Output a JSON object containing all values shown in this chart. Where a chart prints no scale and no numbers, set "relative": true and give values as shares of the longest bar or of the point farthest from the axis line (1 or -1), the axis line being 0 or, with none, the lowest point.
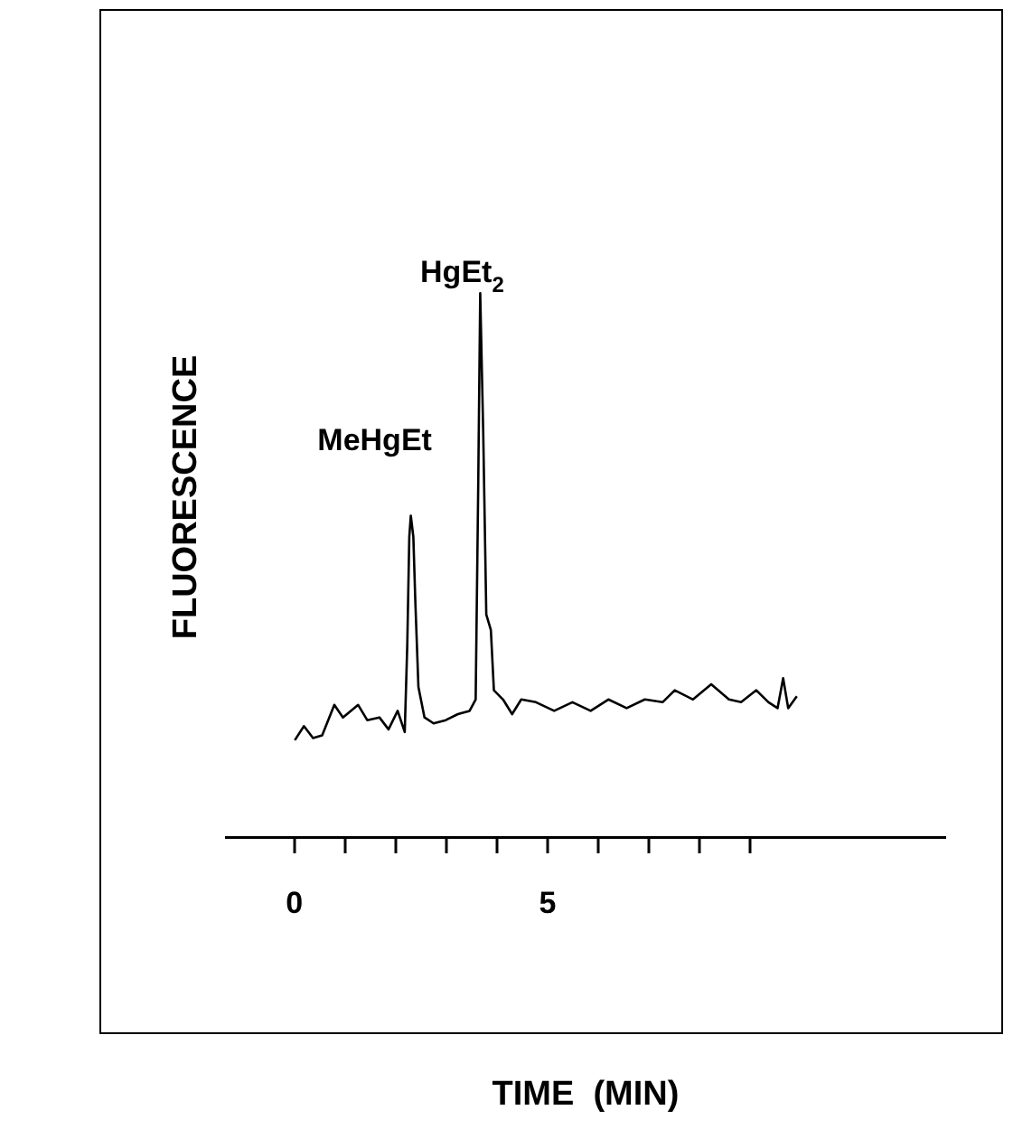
{
  "chart_data": {
    "type": "line",
    "relative": true,
    "xlabel": "TIME  (MIN)",
    "ylabel": "FLUORESCENCE",
    "xlim": [
      -1.35,
      12.85
    ],
    "xticks": [
      0,
      {
        "value": 1,
        "label": null
      },
      {
        "value": 2,
        "label": null
      },
      {
        "value": 3,
        "label": null
      },
      {
        "value": 4,
        "label": null
      },
      5,
      {
        "value": 6,
        "label": null
      },
      {
        "value": 7,
        "label": null
      },
      {
        "value": 8,
        "label": null
      },
      {
        "value": 9,
        "label": null
      }
    ],
    "grid": false,
    "legend": false,
    "marker": "none",
    "line_style": "solid",
    "annotations": [
      {
        "text": "MeHgEt",
        "x": 2.3,
        "y": 0.591
      },
      {
        "text": "HgEt$_{2}$",
        "x": 3.67,
        "y": 1.0
      }
    ],
    "series": [
      {
        "color": "#000000",
        "x": [
          0.01,
          0.19,
          0.37,
          0.55,
          0.79,
          0.96,
          1.26,
          1.44,
          1.68,
          1.86,
          2.04,
          2.18,
          2.23,
          2.27,
          2.3,
          2.35,
          2.39,
          2.45,
          2.57,
          2.75,
          2.99,
          3.23,
          3.46,
          3.58,
          3.63,
          3.67,
          3.73,
          3.79,
          3.88,
          3.94,
          4.12,
          4.3,
          4.48,
          4.77,
          5.13,
          5.49,
          5.85,
          6.2,
          6.56,
          6.92,
          7.27,
          7.51,
          7.87,
          8.23,
          8.58,
          8.82,
          9.12,
          9.36,
          9.54,
          9.65,
          9.75,
          9.92
        ],
        "values": [
          0.178,
          0.204,
          0.182,
          0.187,
          0.243,
          0.22,
          0.243,
          0.215,
          0.22,
          0.198,
          0.232,
          0.193,
          0.353,
          0.552,
          0.591,
          0.552,
          0.431,
          0.276,
          0.22,
          0.209,
          0.215,
          0.226,
          0.232,
          0.253,
          0.641,
          1.0,
          0.741,
          0.409,
          0.381,
          0.27,
          0.253,
          0.226,
          0.253,
          0.248,
          0.232,
          0.248,
          0.232,
          0.253,
          0.237,
          0.253,
          0.248,
          0.27,
          0.253,
          0.281,
          0.253,
          0.248,
          0.27,
          0.248,
          0.237,
          0.292,
          0.237,
          0.259
        ]
      }
    ]
  }
}
